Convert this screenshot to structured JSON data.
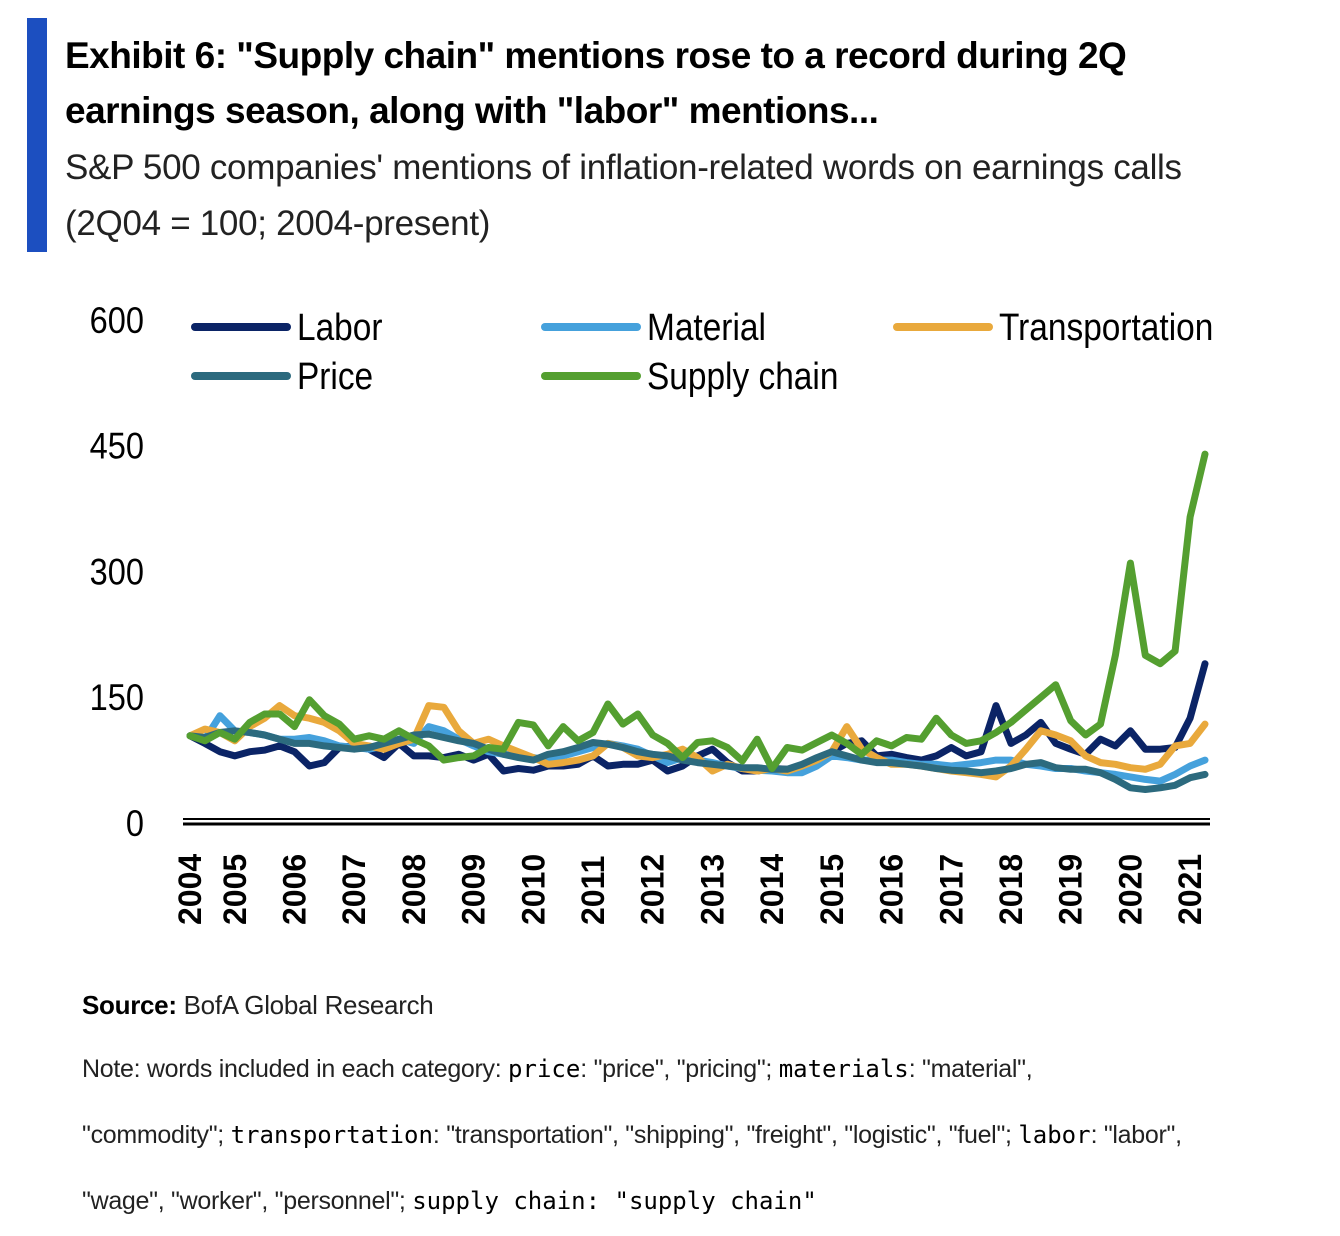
{
  "header": {
    "title_line1": "Exhibit 6: \"Supply chain\" mentions rose to a record during 2Q",
    "title_line2": "earnings season, along with \"labor\" mentions...",
    "subtitle_line1": "S&P 500 companies' mentions of inflation-related words on earnings calls",
    "subtitle_line2": "(2Q04 = 100; 2004-present)"
  },
  "chart_data": {
    "type": "line",
    "title": "\"Supply chain\" mentions rose to a record during 2Q earnings season, along with \"labor\" mentions...",
    "xlabel": "",
    "ylabel": "",
    "x_start": "2Q04",
    "x_end": "2Q21",
    "frequency": "quarterly",
    "ylim": [
      0,
      600
    ],
    "yticks": [
      "0",
      "150",
      "300",
      "450",
      "600"
    ],
    "xticks": [
      "2004",
      "2005",
      "2006",
      "2007",
      "2008",
      "2009",
      "2010",
      "2011",
      "2012",
      "2013",
      "2014",
      "2015",
      "2016",
      "2017",
      "2018",
      "2019",
      "2020",
      "2021"
    ],
    "grid": false,
    "legend_position": "top",
    "series": [
      {
        "name": "Labor",
        "color": "#0b2466",
        "values": [
          104,
          95,
          85,
          80,
          85,
          87,
          92,
          85,
          68,
          72,
          90,
          92,
          88,
          78,
          95,
          80,
          80,
          78,
          82,
          75,
          82,
          62,
          65,
          63,
          68,
          68,
          70,
          80,
          68,
          70,
          70,
          75,
          62,
          68,
          80,
          88,
          72,
          62,
          62,
          65,
          64,
          65,
          70,
          85,
          95,
          98,
          80,
          82,
          78,
          75,
          80,
          90,
          80,
          85,
          140,
          95,
          105,
          120,
          95,
          88,
          82,
          100,
          92,
          110,
          88,
          88,
          90,
          125,
          190
        ]
      },
      {
        "name": "Material",
        "color": "#45a1dc",
        "values": [
          104,
          100,
          128,
          110,
          108,
          105,
          100,
          100,
          102,
          98,
          92,
          90,
          88,
          92,
          100,
          95,
          115,
          110,
          100,
          92,
          85,
          82,
          80,
          78,
          75,
          80,
          85,
          90,
          95,
          92,
          88,
          80,
          72,
          78,
          75,
          72,
          68,
          65,
          63,
          62,
          60,
          60,
          68,
          80,
          78,
          75,
          75,
          75,
          72,
          70,
          70,
          68,
          70,
          72,
          75,
          75,
          70,
          68,
          65,
          65,
          62,
          60,
          58,
          55,
          52,
          50,
          58,
          68,
          75
        ]
      },
      {
        "name": "Transportation",
        "color": "#e9a93c",
        "values": [
          104,
          112,
          108,
          98,
          115,
          125,
          140,
          128,
          125,
          120,
          110,
          95,
          92,
          88,
          95,
          100,
          140,
          138,
          110,
          95,
          100,
          92,
          85,
          78,
          70,
          72,
          75,
          80,
          95,
          90,
          80,
          78,
          82,
          88,
          78,
          62,
          70,
          65,
          62,
          65,
          62,
          68,
          75,
          85,
          115,
          88,
          78,
          70,
          70,
          68,
          65,
          62,
          60,
          58,
          55,
          68,
          88,
          110,
          105,
          98,
          80,
          72,
          70,
          66,
          64,
          70,
          92,
          95,
          118
        ]
      },
      {
        "name": "Price",
        "color": "#2c6a7e",
        "values": [
          104,
          102,
          108,
          110,
          108,
          105,
          100,
          95,
          95,
          92,
          90,
          88,
          90,
          95,
          100,
          105,
          106,
          102,
          98,
          95,
          88,
          82,
          78,
          75,
          82,
          85,
          90,
          96,
          94,
          90,
          85,
          82,
          80,
          75,
          72,
          70,
          68,
          66,
          66,
          64,
          64,
          70,
          78,
          85,
          80,
          75,
          72,
          72,
          70,
          68,
          65,
          63,
          62,
          60,
          62,
          65,
          70,
          72,
          66,
          64,
          64,
          60,
          52,
          42,
          40,
          42,
          45,
          54,
          58
        ]
      },
      {
        "name": "Supply chain",
        "color": "#549f30",
        "values": [
          104,
          98,
          108,
          100,
          120,
          130,
          130,
          115,
          147,
          128,
          118,
          100,
          104,
          100,
          110,
          100,
          92,
          75,
          78,
          80,
          90,
          88,
          120,
          117,
          92,
          115,
          98,
          108,
          142,
          118,
          130,
          105,
          95,
          78,
          96,
          98,
          90,
          74,
          100,
          65,
          90,
          87,
          96,
          105,
          95,
          82,
          98,
          92,
          102,
          100,
          125,
          105,
          95,
          98,
          108,
          120,
          135,
          150,
          165,
          122,
          105,
          118,
          200,
          310,
          200,
          190,
          205,
          365,
          440
        ]
      }
    ]
  },
  "footer": {
    "source_label": "Source:",
    "source_text": " BofA Global Research",
    "note_lines": [
      [
        {
          "t": "Note: words included in each category: ",
          "k": false
        },
        {
          "t": "price",
          "k": true
        },
        {
          "t": ": \"price\", \"pricing\"; ",
          "k": false
        },
        {
          "t": "materials",
          "k": true
        },
        {
          "t": ": \"material\",",
          "k": false
        }
      ],
      [
        {
          "t": "\"commodity\"; ",
          "k": false
        },
        {
          "t": "transportation",
          "k": true
        },
        {
          "t": ": \"transportation\", \"shipping\", \"freight\", \"logistic\", \"fuel\"; ",
          "k": false
        },
        {
          "t": "labor",
          "k": true
        },
        {
          "t": ": \"labor\",",
          "k": false
        }
      ],
      [
        {
          "t": "\"wage\", \"worker\", \"personnel\"; ",
          "k": false
        },
        {
          "t": "supply chain: \"supply chain\"",
          "k": true
        }
      ]
    ]
  }
}
